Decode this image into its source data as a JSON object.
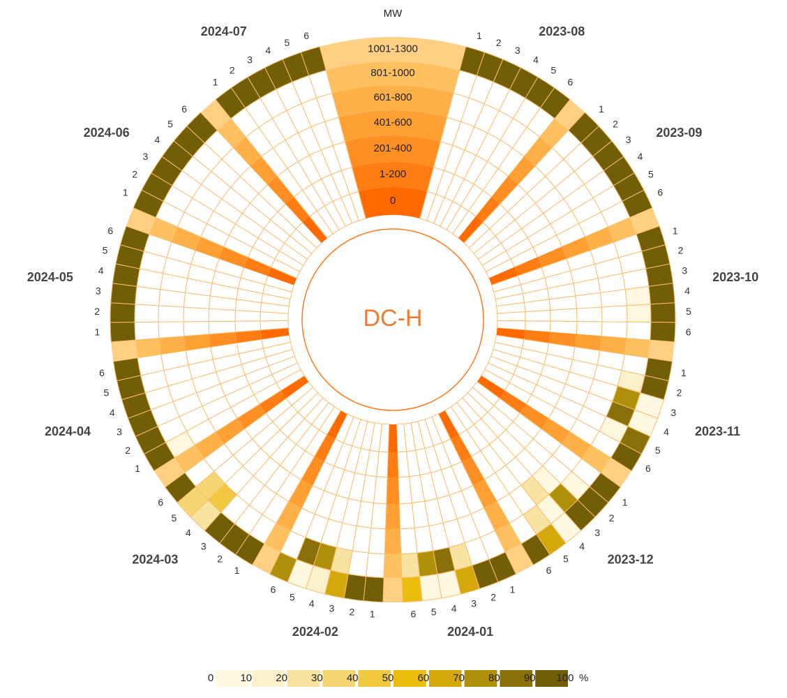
{
  "chart_data": {
    "type": "radial_heatmap",
    "center_label": "DC-H",
    "ring_title": "MW",
    "rings": [
      "0",
      "1-200",
      "201-400",
      "401-600",
      "601-800",
      "801-1000",
      "1001-1300"
    ],
    "ring_colors": [
      "#ff6a00",
      "#ff7d12",
      "#ff8f22",
      "#fea034",
      "#ffb048",
      "#ffc060",
      "#ffd084"
    ],
    "column_labels": [
      "1",
      "2",
      "3",
      "4",
      "5",
      "6"
    ],
    "legend": {
      "ticks": [
        0,
        10,
        20,
        30,
        40,
        50,
        60,
        70,
        80,
        90,
        100
      ],
      "unit": "%",
      "colors": [
        "#fff8e1",
        "#fdf0cc",
        "#f9e3a3",
        "#f5d673",
        "#f0c940",
        "#ecbd0d",
        "#d4a80a",
        "#b08f0b",
        "#8a700a",
        "#735e08"
      ]
    },
    "series": [
      {
        "name": "2023-08",
        "values": [
          [
            0,
            0,
            0,
            0,
            0,
            0,
            100
          ],
          [
            0,
            0,
            0,
            0,
            0,
            0,
            100
          ],
          [
            0,
            0,
            0,
            0,
            0,
            0,
            100
          ],
          [
            0,
            0,
            0,
            0,
            0,
            0,
            100
          ],
          [
            0,
            0,
            0,
            0,
            0,
            0,
            100
          ],
          [
            0,
            0,
            0,
            0,
            0,
            0,
            100
          ]
        ]
      },
      {
        "name": "2023-09",
        "values": [
          [
            0,
            0,
            0,
            0,
            0,
            0,
            100
          ],
          [
            0,
            0,
            0,
            0,
            0,
            0,
            100
          ],
          [
            0,
            0,
            0,
            0,
            0,
            0,
            100
          ],
          [
            0,
            0,
            0,
            0,
            0,
            0,
            100
          ],
          [
            0,
            0,
            0,
            0,
            0,
            0,
            100
          ],
          [
            0,
            0,
            0,
            0,
            0,
            0,
            100
          ]
        ]
      },
      {
        "name": "2023-10",
        "values": [
          [
            0,
            0,
            0,
            0,
            0,
            0,
            100
          ],
          [
            0,
            0,
            0,
            0,
            0,
            0,
            100
          ],
          [
            0,
            0,
            0,
            0,
            0,
            0,
            100
          ],
          [
            0,
            0,
            0,
            0,
            0,
            10,
            100
          ],
          [
            0,
            0,
            0,
            0,
            0,
            10,
            100
          ],
          [
            0,
            0,
            0,
            0,
            0,
            0,
            100
          ]
        ]
      },
      {
        "name": "2023-11",
        "values": [
          [
            0,
            0,
            0,
            0,
            0,
            0,
            100
          ],
          [
            0,
            0,
            0,
            0,
            0,
            20,
            100
          ],
          [
            0,
            0,
            0,
            0,
            0,
            80,
            10
          ],
          [
            0,
            0,
            0,
            0,
            0,
            90,
            10
          ],
          [
            0,
            0,
            0,
            0,
            0,
            10,
            90
          ],
          [
            0,
            0,
            0,
            0,
            0,
            0,
            100
          ]
        ]
      },
      {
        "name": "2023-12",
        "values": [
          [
            0,
            0,
            0,
            0,
            0,
            0,
            100
          ],
          [
            0,
            0,
            0,
            0,
            0,
            10,
            100
          ],
          [
            0,
            0,
            0,
            0,
            10,
            80,
            100
          ],
          [
            0,
            0,
            0,
            0,
            30,
            10,
            10
          ],
          [
            0,
            0,
            0,
            0,
            0,
            30,
            70
          ],
          [
            0,
            0,
            0,
            0,
            0,
            0,
            100
          ]
        ]
      },
      {
        "name": "2024-01",
        "values": [
          [
            0,
            0,
            0,
            0,
            0,
            0,
            100
          ],
          [
            0,
            0,
            0,
            0,
            0,
            0,
            100
          ],
          [
            0,
            0,
            0,
            0,
            0,
            30,
            70
          ],
          [
            0,
            0,
            0,
            0,
            0,
            90,
            10
          ],
          [
            0,
            0,
            0,
            0,
            0,
            80,
            10
          ],
          [
            0,
            0,
            0,
            0,
            0,
            30,
            60
          ]
        ]
      },
      {
        "name": "2024-02",
        "values": [
          [
            0,
            0,
            0,
            0,
            0,
            0,
            100
          ],
          [
            0,
            0,
            0,
            0,
            0,
            0,
            100
          ],
          [
            0,
            0,
            0,
            0,
            0,
            30,
            70
          ],
          [
            0,
            0,
            0,
            0,
            0,
            80,
            20
          ],
          [
            0,
            0,
            0,
            0,
            0,
            90,
            10
          ],
          [
            0,
            0,
            0,
            0,
            0,
            0,
            80
          ]
        ]
      },
      {
        "name": "2024-03",
        "values": [
          [
            0,
            0,
            0,
            0,
            0,
            0,
            100
          ],
          [
            0,
            0,
            0,
            0,
            0,
            0,
            100
          ],
          [
            0,
            0,
            0,
            0,
            0,
            0,
            100
          ],
          [
            0,
            0,
            0,
            0,
            0,
            50,
            30
          ],
          [
            0,
            0,
            0,
            0,
            0,
            40,
            40
          ],
          [
            0,
            0,
            0,
            0,
            0,
            0,
            100
          ]
        ]
      },
      {
        "name": "2024-04",
        "values": [
          [
            0,
            0,
            0,
            0,
            0,
            10,
            100
          ],
          [
            0,
            0,
            0,
            0,
            0,
            0,
            100
          ],
          [
            0,
            0,
            0,
            0,
            0,
            0,
            100
          ],
          [
            0,
            0,
            0,
            0,
            0,
            0,
            100
          ],
          [
            0,
            0,
            0,
            0,
            0,
            0,
            100
          ],
          [
            0,
            0,
            0,
            0,
            0,
            0,
            100
          ]
        ]
      },
      {
        "name": "2024-05",
        "values": [
          [
            0,
            0,
            0,
            0,
            0,
            0,
            100
          ],
          [
            0,
            0,
            0,
            0,
            0,
            0,
            100
          ],
          [
            0,
            0,
            0,
            0,
            0,
            0,
            100
          ],
          [
            0,
            0,
            0,
            0,
            0,
            0,
            100
          ],
          [
            0,
            0,
            0,
            0,
            0,
            0,
            100
          ],
          [
            0,
            0,
            0,
            0,
            0,
            0,
            100
          ]
        ]
      },
      {
        "name": "2024-06",
        "values": [
          [
            0,
            0,
            0,
            0,
            0,
            0,
            100
          ],
          [
            0,
            0,
            0,
            0,
            0,
            0,
            100
          ],
          [
            0,
            0,
            0,
            0,
            0,
            0,
            100
          ],
          [
            0,
            0,
            0,
            0,
            0,
            0,
            100
          ],
          [
            0,
            0,
            0,
            0,
            0,
            0,
            100
          ],
          [
            0,
            0,
            0,
            0,
            0,
            0,
            100
          ]
        ]
      },
      {
        "name": "2024-07",
        "values": [
          [
            0,
            0,
            0,
            0,
            0,
            0,
            100
          ],
          [
            0,
            0,
            0,
            0,
            0,
            0,
            100
          ],
          [
            0,
            0,
            0,
            0,
            0,
            0,
            100
          ],
          [
            0,
            0,
            0,
            0,
            0,
            0,
            100
          ],
          [
            0,
            0,
            0,
            0,
            0,
            0,
            100
          ],
          [
            0,
            0,
            0,
            0,
            0,
            0,
            100
          ]
        ]
      }
    ]
  }
}
